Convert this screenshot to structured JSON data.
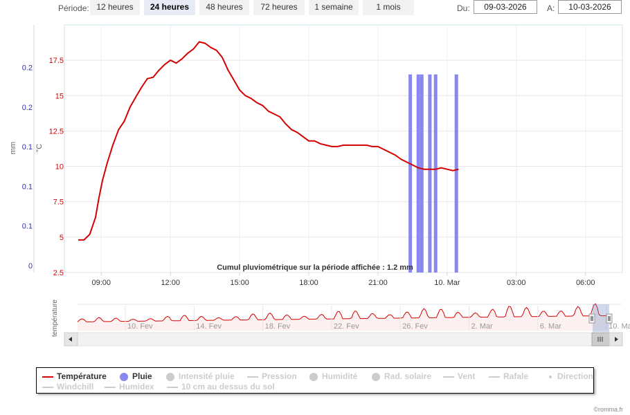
{
  "toolbar": {
    "period_label": "Période:",
    "periods": [
      "12 heures",
      "24 heures",
      "48 heures",
      "72 heures",
      "1 semaine",
      "1 mois"
    ],
    "active_period": "24 heures",
    "from_label": "Du:",
    "from_value": "09-03-2026",
    "to_label": "A:",
    "to_value": "10-03-2026"
  },
  "chart_data": {
    "type": "line",
    "temperature": {
      "name": "Température",
      "color": "#d40000",
      "y_unit": "°C",
      "ylim": [
        2.5,
        20
      ],
      "yticks": [
        "2.5",
        "5",
        "7.5",
        "10",
        "12.5",
        "15",
        "17.5"
      ],
      "points": [
        [
          8.0,
          4.8
        ],
        [
          8.25,
          4.8
        ],
        [
          8.5,
          5.2
        ],
        [
          8.75,
          6.4
        ],
        [
          8.9,
          7.8
        ],
        [
          9.05,
          9.0
        ],
        [
          9.25,
          10.2
        ],
        [
          9.5,
          11.5
        ],
        [
          9.75,
          12.6
        ],
        [
          10.0,
          13.2
        ],
        [
          10.25,
          14.2
        ],
        [
          10.5,
          14.9
        ],
        [
          10.75,
          15.6
        ],
        [
          11.0,
          16.2
        ],
        [
          11.25,
          16.3
        ],
        [
          11.5,
          16.8
        ],
        [
          11.75,
          17.2
        ],
        [
          12.0,
          17.5
        ],
        [
          12.25,
          17.3
        ],
        [
          12.5,
          17.6
        ],
        [
          12.75,
          18.0
        ],
        [
          13.0,
          18.3
        ],
        [
          13.25,
          18.8
        ],
        [
          13.5,
          18.7
        ],
        [
          13.75,
          18.4
        ],
        [
          14.0,
          18.2
        ],
        [
          14.25,
          17.7
        ],
        [
          14.5,
          16.8
        ],
        [
          14.75,
          16.1
        ],
        [
          15.0,
          15.4
        ],
        [
          15.25,
          15.0
        ],
        [
          15.5,
          14.8
        ],
        [
          15.75,
          14.5
        ],
        [
          16.0,
          14.3
        ],
        [
          16.25,
          13.9
        ],
        [
          16.5,
          13.7
        ],
        [
          16.75,
          13.5
        ],
        [
          17.0,
          13.0
        ],
        [
          17.25,
          12.6
        ],
        [
          17.5,
          12.4
        ],
        [
          17.75,
          12.1
        ],
        [
          18.0,
          11.8
        ],
        [
          18.25,
          11.8
        ],
        [
          18.5,
          11.6
        ],
        [
          18.75,
          11.5
        ],
        [
          19.0,
          11.4
        ],
        [
          19.25,
          11.4
        ],
        [
          19.5,
          11.5
        ],
        [
          19.75,
          11.5
        ],
        [
          20.0,
          11.5
        ],
        [
          20.25,
          11.5
        ],
        [
          20.5,
          11.5
        ],
        [
          20.75,
          11.4
        ],
        [
          21.0,
          11.4
        ],
        [
          21.25,
          11.2
        ],
        [
          21.5,
          11.0
        ],
        [
          21.75,
          10.8
        ],
        [
          22.0,
          10.5
        ],
        [
          22.25,
          10.3
        ],
        [
          22.5,
          10.1
        ],
        [
          22.75,
          9.9
        ],
        [
          23.0,
          9.8
        ],
        [
          23.25,
          9.8
        ],
        [
          23.5,
          9.8
        ],
        [
          23.75,
          9.9
        ],
        [
          24.0,
          9.8
        ],
        [
          24.25,
          9.7
        ],
        [
          24.5,
          9.8
        ]
      ]
    },
    "rain": {
      "name": "Pluie",
      "color": "#8888ee",
      "y_unit": "mm",
      "ylim": [
        0,
        0.25
      ],
      "yticks": [
        "0",
        "0.1",
        "0.1",
        "0.1",
        "0.2",
        "0.2"
      ],
      "bars": [
        {
          "x": 22.4,
          "value": 0.2
        },
        {
          "x": 22.75,
          "value": 0.2
        },
        {
          "x": 22.9,
          "value": 0.2
        },
        {
          "x": 23.25,
          "value": 0.2
        },
        {
          "x": 23.5,
          "value": 0.2
        },
        {
          "x": 24.4,
          "value": 0.2
        }
      ]
    },
    "x_ticks": [
      {
        "x": 9,
        "label": "09:00"
      },
      {
        "x": 12,
        "label": "12:00"
      },
      {
        "x": 15,
        "label": "15:00"
      },
      {
        "x": 18,
        "label": "18:00"
      },
      {
        "x": 21,
        "label": "21:00"
      },
      {
        "x": 24,
        "label": "10. Mar"
      },
      {
        "x": 27,
        "label": "03:00"
      },
      {
        "x": 30,
        "label": "06:00"
      }
    ],
    "xlim": [
      7.4,
      31.6
    ],
    "annotation": "Cumul pluviométrique sur la période affichée : 1.2 mm",
    "ylabel_left_mm": "mm",
    "ylabel_left_temp": "°C",
    "grid": true,
    "legend_placement": "bottom"
  },
  "navigator": {
    "axis_label": "température",
    "labels": [
      "10. Fev",
      "14. Fev",
      "18. Fev",
      "22. Fev",
      "26. Fev",
      "2. Mar",
      "6. Mar",
      "10. Ma"
    ]
  },
  "legend": [
    {
      "label": "Température",
      "state": "on",
      "symbol": "line",
      "color": "#d40000"
    },
    {
      "label": "Pluie",
      "state": "on",
      "symbol": "dot",
      "color": "#8888ee"
    },
    {
      "label": "Intensité pluie",
      "state": "off",
      "symbol": "dot"
    },
    {
      "label": "Pression",
      "state": "off",
      "symbol": "line"
    },
    {
      "label": "Humidité",
      "state": "off",
      "symbol": "dot"
    },
    {
      "label": "Rad. solaire",
      "state": "off",
      "symbol": "dot"
    },
    {
      "label": "Vent",
      "state": "off",
      "symbol": "line"
    },
    {
      "label": "Rafale",
      "state": "off",
      "symbol": "line"
    },
    {
      "label": "Direction",
      "state": "off",
      "symbol": "small"
    },
    {
      "label": "Windchill",
      "state": "off",
      "symbol": "line"
    },
    {
      "label": "Humidex",
      "state": "off",
      "symbol": "line"
    },
    {
      "label": "10 cm au dessus du sol",
      "state": "off",
      "symbol": "line"
    }
  ],
  "credit": "©romma.fr"
}
